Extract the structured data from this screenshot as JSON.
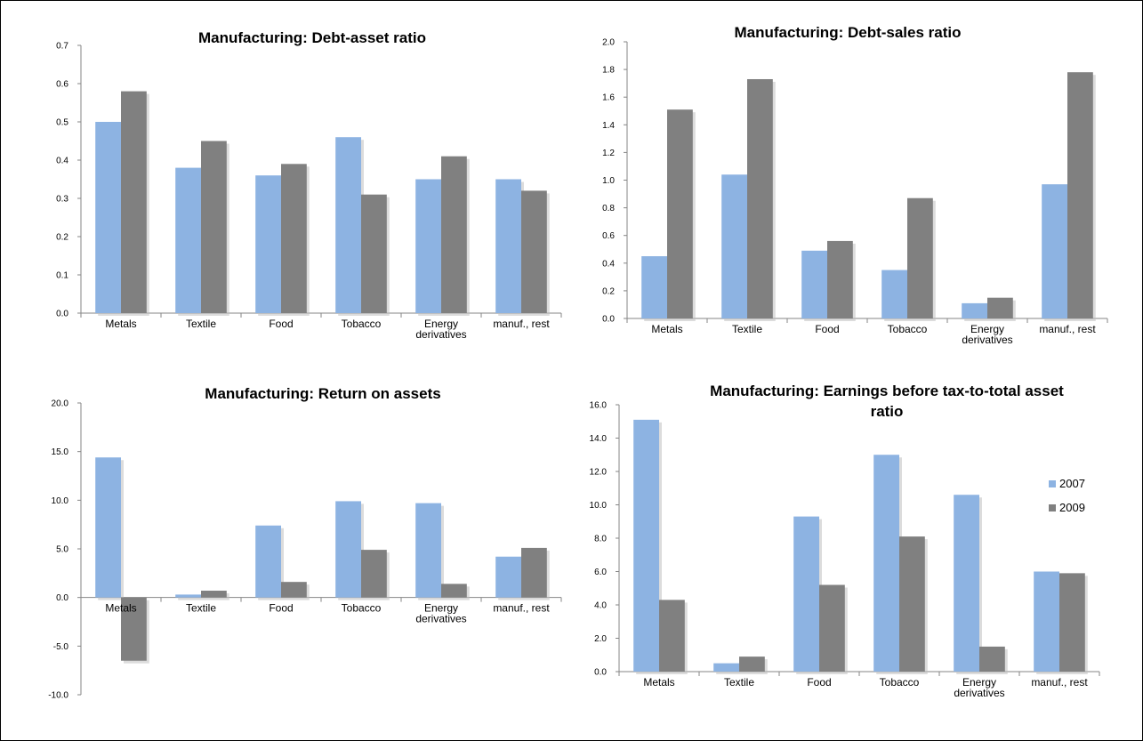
{
  "colors": {
    "s2007": "#8db3e2",
    "s2009": "#808080",
    "shadow": "#bfbfbf"
  },
  "legend": {
    "items": [
      "2007",
      "2009"
    ],
    "position": "right"
  },
  "chart_data": [
    {
      "id": "debt-asset",
      "type": "bar",
      "title": [
        "Manufacturing: Debt-asset ratio"
      ],
      "categories": [
        [
          "Metals"
        ],
        [
          "Textile"
        ],
        [
          "Food"
        ],
        [
          "Tobacco"
        ],
        [
          "Energy",
          "derivatives"
        ],
        [
          "manuf., rest"
        ]
      ],
      "series": [
        {
          "name": "2007",
          "values": [
            0.5,
            0.38,
            0.36,
            0.46,
            0.35,
            0.35
          ]
        },
        {
          "name": "2009",
          "values": [
            0.58,
            0.45,
            0.39,
            0.31,
            0.41,
            0.32
          ]
        }
      ],
      "ylim": [
        0,
        0.7
      ],
      "yticks": [
        0.0,
        0.1,
        0.2,
        0.3,
        0.4,
        0.5,
        0.6,
        0.7
      ],
      "tick_decimals": 1,
      "grid": false,
      "legend": false
    },
    {
      "id": "debt-sales",
      "type": "bar",
      "title": [
        "Manufacturing: Debt-sales ratio"
      ],
      "categories": [
        [
          "Metals"
        ],
        [
          "Textile"
        ],
        [
          "Food"
        ],
        [
          "Tobacco"
        ],
        [
          "Energy",
          "derivatives"
        ],
        [
          "manuf., rest"
        ]
      ],
      "series": [
        {
          "name": "2007",
          "values": [
            0.45,
            1.04,
            0.49,
            0.35,
            0.11,
            0.97
          ]
        },
        {
          "name": "2009",
          "values": [
            1.51,
            1.73,
            0.56,
            0.87,
            0.15,
            1.78
          ]
        }
      ],
      "ylim": [
        0,
        2.0
      ],
      "yticks": [
        0.0,
        0.2,
        0.4,
        0.6,
        0.8,
        1.0,
        1.2,
        1.4,
        1.6,
        1.8,
        2.0
      ],
      "tick_decimals": 1,
      "grid": false,
      "legend": false
    },
    {
      "id": "return-on-assets",
      "type": "bar",
      "title": [
        "Manufacturing: Return on assets"
      ],
      "categories": [
        [
          "Metals"
        ],
        [
          "Textile"
        ],
        [
          "Food"
        ],
        [
          "Tobacco"
        ],
        [
          "Energy",
          "derivatives"
        ],
        [
          "manuf., rest"
        ]
      ],
      "series": [
        {
          "name": "2007",
          "values": [
            14.4,
            0.3,
            7.4,
            9.9,
            9.7,
            4.2
          ]
        },
        {
          "name": "2009",
          "values": [
            -6.5,
            0.7,
            1.6,
            4.9,
            1.4,
            5.1
          ]
        }
      ],
      "ylim": [
        -10,
        20
      ],
      "yticks": [
        -10.0,
        -5.0,
        0.0,
        5.0,
        10.0,
        15.0,
        20.0
      ],
      "tick_decimals": 1,
      "grid": false,
      "legend": false
    },
    {
      "id": "ebt-total-asset",
      "type": "bar",
      "title": [
        "Manufacturing: Earnings before tax-to-total asset",
        "ratio"
      ],
      "categories": [
        [
          "Metals"
        ],
        [
          "Textile"
        ],
        [
          "Food"
        ],
        [
          "Tobacco"
        ],
        [
          "Energy",
          "derivatives"
        ],
        [
          "manuf., rest"
        ]
      ],
      "series": [
        {
          "name": "2007",
          "values": [
            15.1,
            0.5,
            9.3,
            13.0,
            10.6,
            6.0
          ]
        },
        {
          "name": "2009",
          "values": [
            4.3,
            0.9,
            5.2,
            8.1,
            1.5,
            5.9
          ]
        }
      ],
      "ylim": [
        0,
        16
      ],
      "yticks": [
        0.0,
        2.0,
        4.0,
        6.0,
        8.0,
        10.0,
        12.0,
        14.0,
        16.0
      ],
      "tick_decimals": 1,
      "grid": false,
      "legend": true
    }
  ]
}
